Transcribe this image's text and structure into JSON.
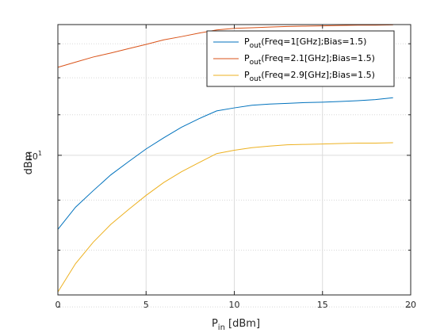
{
  "chart_data": {
    "type": "line",
    "xlabel": {
      "main": "P",
      "sub": "in",
      "rest": " [dBm]"
    },
    "ylabel": "dBm",
    "xlim": [
      0,
      20
    ],
    "ylim": [
      7.2,
      13.6
    ],
    "yscale": "log",
    "xticks": [
      0,
      5,
      10,
      15,
      20
    ],
    "yticks": [
      {
        "value": 10,
        "base": "10",
        "exp": "1"
      }
    ],
    "grid": true,
    "legend_position": "top-right",
    "series": [
      {
        "name": {
          "main": "P",
          "sub": "out",
          "rest": "(Freq=1[GHz];Bias=1.5)"
        },
        "color": "#0072BD",
        "x": [
          0,
          1,
          2,
          3,
          4,
          5,
          6,
          7,
          8,
          9,
          10,
          11,
          12,
          13,
          14,
          15,
          16,
          17,
          18,
          19
        ],
        "y": [
          8.4,
          8.85,
          9.2,
          9.55,
          9.85,
          10.15,
          10.42,
          10.68,
          10.9,
          11.1,
          11.18,
          11.25,
          11.28,
          11.3,
          11.32,
          11.33,
          11.35,
          11.37,
          11.4,
          11.45
        ]
      },
      {
        "name": {
          "main": "P",
          "sub": "out",
          "rest": "(Freq=2.1[GHz];Bias=1.5)"
        },
        "color": "#D95319",
        "x": [
          0,
          1,
          2,
          3,
          4,
          5,
          6,
          7,
          8,
          9,
          10,
          11,
          12,
          13,
          14,
          15,
          16,
          17,
          18,
          19
        ],
        "y": [
          12.3,
          12.45,
          12.6,
          12.72,
          12.85,
          12.98,
          13.12,
          13.22,
          13.33,
          13.43,
          13.48,
          13.5,
          13.52,
          13.54,
          13.55,
          13.56,
          13.57,
          13.58,
          13.58,
          13.59
        ]
      },
      {
        "name": {
          "main": "P",
          "sub": "out",
          "rest": "(Freq=2.9[GHz];Bias=1.5)"
        },
        "color": "#EDB120",
        "x": [
          0,
          1,
          2,
          3,
          4,
          5,
          6,
          7,
          8,
          9,
          10,
          11,
          12,
          13,
          14,
          15,
          16,
          17,
          18,
          19
        ],
        "y": [
          7.25,
          7.75,
          8.15,
          8.5,
          8.8,
          9.1,
          9.38,
          9.62,
          9.83,
          10.04,
          10.12,
          10.18,
          10.22,
          10.25,
          10.26,
          10.27,
          10.28,
          10.29,
          10.29,
          10.3
        ]
      }
    ]
  }
}
